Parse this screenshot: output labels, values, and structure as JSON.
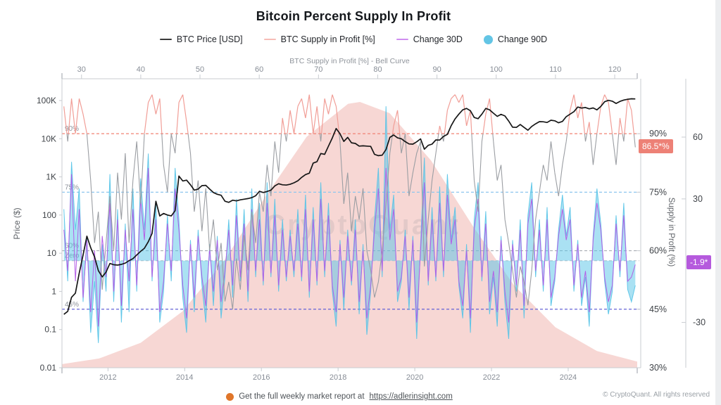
{
  "title": "Bitcoin Percent Supply In Profit",
  "watermark": "CryptoQuant",
  "copyright": "© CryptoQuant. All rights reserved",
  "footer": {
    "text": "Get the full weekly market report at",
    "link": "https://adlerinsight.com",
    "dot_color": "#e0762a"
  },
  "badges": {
    "supply": {
      "text": "86.5*%",
      "bg": "#ed8176"
    },
    "change": {
      "text": "-1.9*",
      "bg": "#b55add"
    }
  },
  "legend": [
    {
      "key": "btc-price",
      "label": "BTC Price [USD]",
      "marker": "line",
      "color": "#3a3a3a"
    },
    {
      "key": "btc-supply-in-profit",
      "label": "BTC Supply in Profit [%]",
      "marker": "line",
      "color": "#f6bcb6"
    },
    {
      "key": "change-30d",
      "label": "Change 30D",
      "marker": "line",
      "color": "#cf8df0"
    },
    {
      "key": "change-90d",
      "label": "Change 90D",
      "marker": "dot",
      "color": "#63c5e5"
    }
  ],
  "chart_data": {
    "type": "line",
    "title": "Bitcoin Percent Supply In Profit",
    "grid": false,
    "legend_position": "top",
    "colors": {
      "price": "#161616",
      "supply_above": "#f19e97",
      "supply_below": "#9b9ea3",
      "change30": "#b45ee6",
      "change90": "#55c3e7",
      "bell": "#f5cdc9",
      "axis_line": "#c9ccd1",
      "axis_text": "#878d96",
      "value_text": "#3f4348",
      "threshold_text": "#8d929b"
    },
    "supply_color_threshold": 90,
    "axes": {
      "top": {
        "title": "BTC Supply in Profit [%] - Bell Curve",
        "ticks": [
          30,
          40,
          50,
          60,
          70,
          80,
          90,
          100,
          110,
          120
        ],
        "domain": [
          26.7,
          123.8
        ]
      },
      "bottom": {
        "ticks": [
          2012,
          2014,
          2016,
          2018,
          2020,
          2022,
          2024
        ],
        "domain": [
          2010.8,
          2025.8
        ]
      },
      "left": {
        "title": "Price ($)",
        "scale": "log",
        "log_domain": [
          -2,
          5.46
        ],
        "ticks": [
          {
            "label": "100K",
            "v": 100000
          },
          {
            "label": "10K",
            "v": 10000
          },
          {
            "label": "1K",
            "v": 1000
          },
          {
            "label": "100",
            "v": 100
          },
          {
            "label": "10",
            "v": 10
          },
          {
            "label": "1",
            "v": 1
          },
          {
            "label": "0.1",
            "v": 0.1
          },
          {
            "label": "0.01",
            "v": 0.01
          }
        ]
      },
      "right_supply": {
        "title": "Supply in Profit (%)",
        "domain": [
          30,
          103
        ],
        "ticks": [
          {
            "label": "90%",
            "v": 90
          },
          {
            "label": "75%",
            "v": 75
          },
          {
            "label": "60%",
            "v": 60
          },
          {
            "label": "45%",
            "v": 45
          },
          {
            "label": "30%",
            "v": 30
          }
        ]
      },
      "right_change": {
        "domain": [
          -52,
          86.3
        ],
        "ticks": [
          {
            "label": "60",
            "v": 60
          },
          {
            "label": "30",
            "v": 30
          },
          {
            "label": "-30",
            "v": -30
          }
        ]
      }
    },
    "threshold_lines": [
      {
        "label": "90%",
        "axis": "supply",
        "v": 90,
        "color": "#f08273"
      },
      {
        "label": "75%",
        "axis": "supply",
        "v": 75,
        "color": "#8ec6ee"
      },
      {
        "label": "60%",
        "axis": "supply",
        "v": 60,
        "color": "#a9adb3"
      },
      {
        "label": "Zero",
        "axis": "change",
        "v": 0,
        "color": "#c6cacf"
      },
      {
        "label": "45%",
        "axis": "supply",
        "v": 45,
        "color": "#6663d6"
      }
    ],
    "bell_curve": {
      "mean": 77,
      "std": 17,
      "points": [
        [
          26,
          0.011
        ],
        [
          33,
          0.035
        ],
        [
          40,
          0.094
        ],
        [
          47,
          0.211
        ],
        [
          54,
          0.4
        ],
        [
          61,
          0.642
        ],
        [
          68,
          0.869
        ],
        [
          75,
          0.993
        ],
        [
          77,
          1.0
        ],
        [
          82,
          0.958
        ],
        [
          89,
          0.78
        ],
        [
          96,
          0.535
        ],
        [
          103,
          0.31
        ],
        [
          110,
          0.152
        ],
        [
          117,
          0.063
        ],
        [
          124,
          0.022
        ]
      ]
    },
    "series": {
      "btc_price_usd": {
        "start": 2010.85,
        "step": 0.1,
        "values": [
          0.25,
          0.3,
          0.7,
          0.9,
          3,
          9,
          28,
          14,
          8,
          3.5,
          2.4,
          3.2,
          5.4,
          5.0,
          4.9,
          5.1,
          5.5,
          6.4,
          7.2,
          9.0,
          11.2,
          13.5,
          20,
          33,
          230,
          95,
          110,
          100,
          95,
          130,
          1050,
          780,
          820,
          620,
          450,
          480,
          590,
          600,
          480,
          390,
          350,
          330,
          230,
          215,
          245,
          235,
          250,
          260,
          270,
          285,
          320,
          420,
          390,
          415,
          450,
          580,
          660,
          620,
          610,
          640,
          700,
          790,
          970,
          1150,
          1250,
          2300,
          2500,
          4100,
          3900,
          6400,
          10500,
          18500,
          13500,
          8500,
          10800,
          7800,
          7500,
          6400,
          6500,
          6400,
          6300,
          3900,
          3600,
          3700,
          5200,
          10800,
          12500,
          10500,
          10000,
          8400,
          7300,
          7200,
          8300,
          9900,
          5300,
          6700,
          7200,
          9300,
          9200,
          11500,
          13000,
          22000,
          33000,
          44000,
          57000,
          62000,
          54000,
          36000,
          33500,
          44000,
          62000,
          57000,
          46500,
          38500,
          43500,
          39500,
          29000,
          20000,
          19800,
          23500,
          19800,
          16700,
          21000,
          24500,
          28000,
          27800,
          26600,
          30400,
          29500,
          26100,
          28400,
          37800,
          44000,
          51000,
          67500,
          63500,
          65500,
          60500,
          64000,
          57000,
          70000,
          93000,
          101000,
          96000,
          84000,
          95000,
          103000,
          108000,
          111000,
          110000
        ]
      },
      "supply_in_profit_pct": {
        "start": 2010.85,
        "step": 0.1,
        "values": [
          97,
          88,
          99,
          90,
          99,
          95,
          90,
          78,
          62,
          70,
          50,
          62,
          74,
          60,
          80,
          68,
          85,
          62,
          78,
          88,
          72,
          90,
          98,
          100,
          95,
          99,
          82,
          75,
          90,
          85,
          98,
          100,
          93,
          85,
          70,
          78,
          65,
          76,
          60,
          68,
          55,
          62,
          47,
          52,
          45,
          58,
          50,
          64,
          55,
          70,
          62,
          75,
          70,
          82,
          74,
          88,
          80,
          94,
          88,
          96,
          90,
          97,
          99,
          94,
          100,
          90,
          97,
          88,
          99,
          95,
          100,
          97,
          88,
          72,
          80,
          65,
          74,
          68,
          76,
          60,
          55,
          48,
          52,
          60,
          72,
          85,
          92,
          96,
          85,
          90,
          74,
          80,
          85,
          88,
          56,
          68,
          78,
          85,
          92,
          88,
          96,
          99,
          100,
          98,
          100,
          92,
          96,
          78,
          70,
          88,
          95,
          99,
          88,
          78,
          82,
          68,
          62,
          55,
          48,
          56,
          52,
          46,
          55,
          68,
          75,
          82,
          78,
          88,
          80,
          74,
          82,
          88,
          96,
          100,
          94,
          98,
          88,
          93,
          82,
          90,
          97,
          100,
          98,
          90,
          82,
          94,
          88,
          99,
          96,
          86.5
        ]
      },
      "change_30d": {
        "start": 2010.85,
        "step": 0.1,
        "values": [
          15,
          -5,
          42,
          -10,
          25,
          -18,
          10,
          -25,
          5,
          -32,
          12,
          -8,
          28,
          -15,
          20,
          -22,
          15,
          -10,
          25,
          -12,
          30,
          10,
          45,
          -8,
          20,
          -25,
          -10,
          18,
          -5,
          35,
          15,
          -12,
          -28,
          8,
          -18,
          12,
          -8,
          -22,
          6,
          -15,
          10,
          -20,
          -5,
          15,
          -12,
          22,
          -8,
          18,
          -15,
          25,
          -5,
          20,
          -10,
          28,
          -6,
          22,
          -12,
          15,
          -8,
          12,
          -5,
          18,
          -8,
          25,
          -15,
          20,
          -10,
          30,
          -5,
          22,
          -12,
          -25,
          8,
          -18,
          12,
          -10,
          15,
          -20,
          5,
          -28,
          -12,
          15,
          35,
          -5,
          45,
          10,
          25,
          -15,
          -8,
          12,
          -18,
          10,
          -30,
          5,
          38,
          -10,
          20,
          -8,
          28,
          -5,
          32,
          8,
          20,
          -10,
          -22,
          5,
          -28,
          15,
          30,
          -8,
          18,
          -20,
          -5,
          -25,
          10,
          -15,
          -30,
          8,
          -12,
          15,
          -22,
          18,
          30,
          -5,
          15,
          -12,
          20,
          -18,
          -8,
          12,
          25,
          10,
          20,
          -12,
          8,
          -18,
          -5,
          -25,
          10,
          28,
          15,
          -8,
          -20,
          -12,
          18,
          -5,
          22,
          -10,
          -8,
          -1.9
        ]
      },
      "change_90d": {
        "start": 2010.85,
        "step": 0.1,
        "values": [
          25,
          -10,
          48,
          15,
          35,
          -20,
          12,
          -35,
          -10,
          -40,
          8,
          -15,
          42,
          -20,
          25,
          -30,
          18,
          -25,
          35,
          -15,
          40,
          15,
          52,
          -10,
          28,
          -30,
          -15,
          22,
          -10,
          45,
          20,
          -18,
          -35,
          10,
          -25,
          15,
          -12,
          -30,
          8,
          -22,
          12,
          -28,
          -8,
          20,
          -18,
          30,
          -10,
          25,
          -20,
          35,
          -8,
          28,
          -12,
          38,
          -8,
          30,
          -15,
          20,
          -10,
          15,
          -8,
          25,
          -10,
          32,
          -18,
          26,
          -12,
          38,
          -8,
          28,
          -15,
          -32,
          10,
          -24,
          15,
          -12,
          20,
          -26,
          8,
          -36,
          -15,
          20,
          45,
          -8,
          75,
          15,
          32,
          -20,
          -10,
          15,
          -24,
          12,
          -38,
          8,
          50,
          -12,
          26,
          -10,
          36,
          -8,
          42,
          10,
          26,
          -12,
          -28,
          8,
          -35,
          20,
          38,
          -10,
          24,
          -26,
          -8,
          -32,
          12,
          -20,
          -38,
          10,
          -15,
          20,
          -28,
          22,
          38,
          -8,
          20,
          -15,
          26,
          -22,
          -10,
          15,
          32,
          12,
          26,
          -15,
          10,
          -22,
          -8,
          -32,
          12,
          35,
          18,
          -10,
          -26,
          -15,
          22,
          -8,
          28,
          -14,
          -20,
          -12
        ]
      }
    }
  }
}
